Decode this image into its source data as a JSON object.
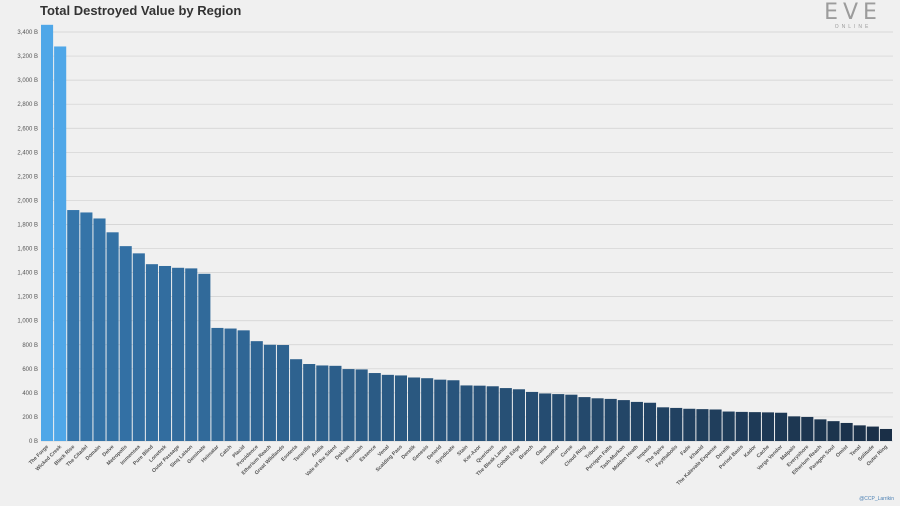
{
  "chart_data": {
    "type": "bar",
    "title": "Total Destroyed Value by Region",
    "xlabel": "",
    "ylabel": "",
    "ylim": [
      0,
      3500
    ],
    "y_ticks": [
      0,
      200,
      400,
      600,
      800,
      1000,
      1200,
      1400,
      1600,
      1800,
      2000,
      2200,
      2400,
      2600,
      2800,
      3000,
      3200,
      3400
    ],
    "y_tick_labels": [
      "0 B",
      "200 B",
      "400 B",
      "600 B",
      "800 B",
      "1,000 B",
      "1,200 B",
      "1,400 B",
      "1,600 B",
      "1,800 B",
      "2,000 B",
      "2,200 B",
      "2,400 B",
      "2,600 B",
      "2,800 B",
      "3,000 B",
      "3,200 B",
      "3,400 B"
    ],
    "grid": true,
    "categories": [
      "The Forge",
      "Wicked Creek",
      "Black Rise",
      "The Citadel",
      "Domain",
      "Delve",
      "Metropolis",
      "Immensea",
      "Pure Blind",
      "Lonetrek",
      "Outer Passage",
      "Sinq Laison",
      "Geminate",
      "Heimatar",
      "Catch",
      "Placid",
      "Providence",
      "Etherium Reach",
      "Great Wildlands",
      "Esoteria",
      "Tenerifis",
      "Aridia",
      "Vale of the Silent",
      "Deklein",
      "Fountain",
      "Essence",
      "Venal",
      "Scalding Pass",
      "Derelik",
      "Genesis",
      "Detorid",
      "Syndicate",
      "Stain",
      "Kor-Azor",
      "Querious",
      "The Bleak Lands",
      "Cobalt Edge",
      "Branch",
      "Oasa",
      "Insmother",
      "Curse",
      "Cloud Ring",
      "Tribute",
      "Perrigen Falls",
      "Tash-Murkon",
      "Molden Heath",
      "Impass",
      "The Spire",
      "Feythabolis",
      "Fade",
      "Khanid",
      "The Kalevala Expanse",
      "Derelik",
      "Period Basis",
      "Kador",
      "Cache",
      "Verge Vendor",
      "Malpais",
      "Everyshore",
      "Etherium Reach",
      "Paragon Soul",
      "Omist",
      "Tenal",
      "Solitude",
      "Outer Ring"
    ],
    "values": [
      3460,
      3280,
      1920,
      1900,
      1850,
      1735,
      1620,
      1560,
      1470,
      1455,
      1440,
      1435,
      1390,
      940,
      935,
      920,
      830,
      800,
      798,
      680,
      640,
      628,
      625,
      598,
      595,
      565,
      550,
      545,
      528,
      522,
      510,
      505,
      462,
      460,
      455,
      440,
      430,
      408,
      395,
      390,
      385,
      365,
      355,
      350,
      340,
      325,
      318,
      280,
      275,
      268,
      265,
      262,
      245,
      242,
      240,
      238,
      235,
      205,
      200,
      180,
      165,
      150,
      130,
      120,
      100
    ],
    "colors": {
      "highlight": "#4fa7e8",
      "gradient_start": "#3575aa",
      "gradient_end": "#1a2f47",
      "grid": "#cfcfcf",
      "axis_text": "#555555"
    }
  },
  "logo": {
    "main": "EVE",
    "sub": "ONLINE"
  },
  "credit": "@CCP_Larrikin"
}
